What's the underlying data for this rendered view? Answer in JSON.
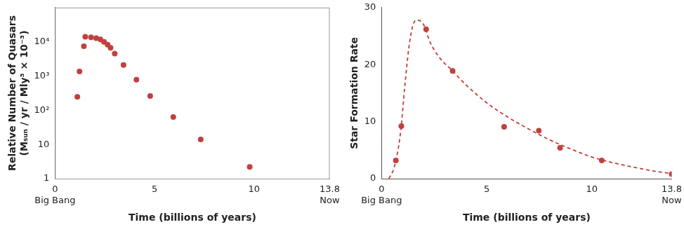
{
  "chart_data": [
    {
      "type": "scatter",
      "xlabel": "Time (billions of years)",
      "ylabel": [
        "Relative Number of Quasars",
        "(Mₛᵤₙ / yr / Mly³ × 10⁻³)"
      ],
      "xlim": [
        0,
        13.8
      ],
      "xticks": [
        {
          "value": 0,
          "label": [
            "0",
            "Big Bang"
          ]
        },
        5,
        10,
        {
          "value": 13.8,
          "label": [
            "13.8",
            "Now"
          ]
        }
      ],
      "ylim": [
        1,
        100000
      ],
      "yticks": [
        1,
        10,
        {
          "value": 100,
          "label": "10²"
        },
        {
          "value": 1000,
          "label": "10³"
        },
        {
          "value": 10000,
          "label": "10⁴"
        }
      ],
      "log": "y",
      "grid": false,
      "series": [
        {
          "type": "scatter",
          "color": "#c1403d",
          "marker": "circle",
          "x": [
            1.12,
            1.23,
            1.45,
            1.52,
            1.81,
            2.07,
            2.28,
            2.46,
            2.64,
            2.79,
            3.0,
            3.44,
            4.09,
            4.78,
            5.94,
            7.32,
            9.78
          ],
          "values": [
            245,
            1350,
            7400,
            14000,
            13500,
            12800,
            11700,
            10000,
            8200,
            6700,
            4500,
            2100,
            780,
            260,
            63,
            14,
            2.2
          ]
        }
      ]
    },
    {
      "type": "scatter",
      "xlabel": "Time (billions of years)",
      "ylabel": "Star Formation Rate",
      "xlim": [
        0,
        13.8
      ],
      "xticks": [
        {
          "value": 0,
          "label": [
            "0",
            "Big Bang"
          ]
        },
        5,
        10,
        {
          "value": 13.8,
          "label": [
            "13.8",
            "Now"
          ]
        }
      ],
      "ylim": [
        0,
        30
      ],
      "yticks": [
        0,
        10,
        20,
        30
      ],
      "grid": false,
      "series": [
        {
          "type": "scatter",
          "color": "#c1403d",
          "marker": "circle",
          "x": [
            0.68,
            0.94,
            2.12,
            3.38,
            5.83,
            7.48,
            8.49,
            10.47,
            13.8
          ],
          "values": [
            3.2,
            9.2,
            26.2,
            18.9,
            9.1,
            8.4,
            5.4,
            3.2,
            0.8
          ]
        },
        {
          "type": "line",
          "color": "#c1403d",
          "line_style": "dashed",
          "x": [
            0.35,
            0.6,
            0.9,
            1.1,
            1.3,
            1.5,
            1.7,
            2.0,
            2.3,
            2.7,
            3.4,
            4.0,
            5.0,
            6.0,
            7.0,
            8.0,
            9.0,
            10.0,
            11.0,
            12.0,
            13.0,
            13.8
          ],
          "values": [
            0,
            2,
            8,
            16,
            23,
            27,
            27.8,
            27,
            24,
            21.5,
            18.8,
            16.5,
            13.3,
            10.8,
            8.7,
            6.8,
            5.2,
            3.8,
            2.8,
            2.0,
            1.3,
            0.9
          ]
        }
      ]
    }
  ]
}
